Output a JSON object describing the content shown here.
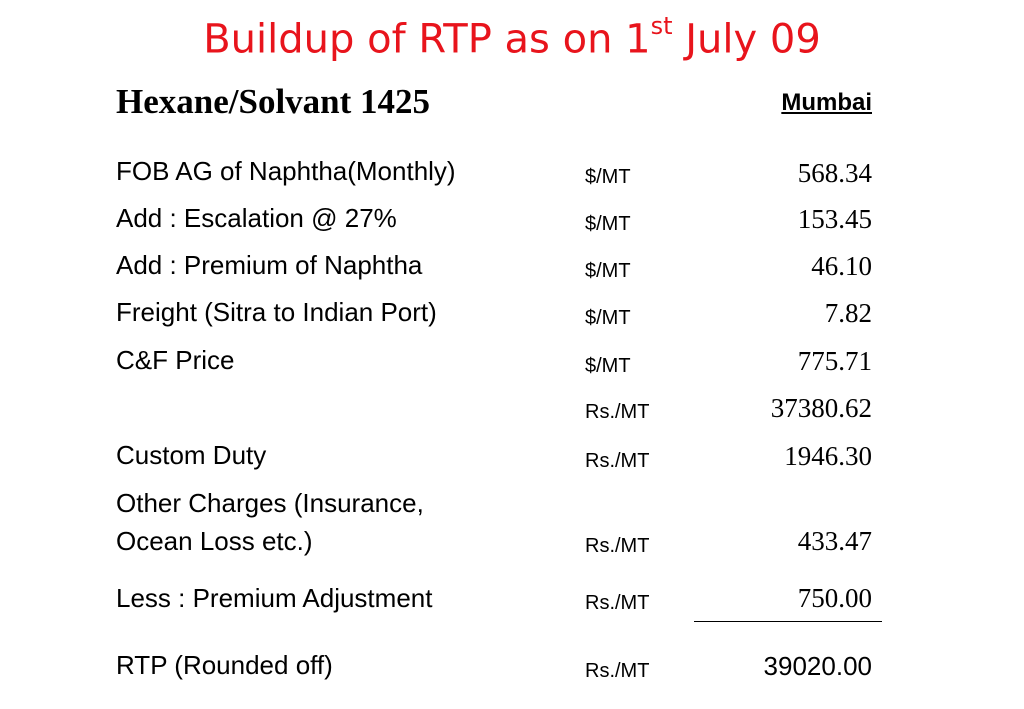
{
  "title": {
    "main": "Buildup of RTP as on 1",
    "sup": "st",
    "tail": " July 09"
  },
  "heading": "Hexane/Solvant 1425",
  "column_header": "Mumbai",
  "rows": [
    {
      "label": "FOB AG of Naphtha(Monthly)",
      "unit": "$/MT",
      "value": "568.34"
    },
    {
      "label": "Add : Escalation @ 27%",
      "unit": "$/MT",
      "value": "153.45"
    },
    {
      "label": "Add : Premium of Naphtha",
      "unit": "$/MT",
      "value": "46.10"
    },
    {
      "label": "Freight (Sitra to Indian Port)",
      "unit": "$/MT",
      "value": "7.82"
    },
    {
      "label": "C&F Price",
      "unit": "$/MT",
      "value": "775.71"
    },
    {
      "label": "",
      "unit": "Rs./MT",
      "value": "37380.62"
    },
    {
      "label": "Custom Duty",
      "unit": "Rs./MT",
      "value": "1946.30"
    },
    {
      "label_line1": "Other Charges (Insurance,",
      "label_line2": "Ocean Loss etc.)",
      "unit": "Rs./MT",
      "value": "433.47"
    },
    {
      "label": "Less : Premium Adjustment",
      "unit": "Rs./MT",
      "value": "750.00"
    }
  ],
  "total": {
    "label": "RTP (Rounded off)",
    "unit": "Rs./MT",
    "value": "39020.00"
  }
}
